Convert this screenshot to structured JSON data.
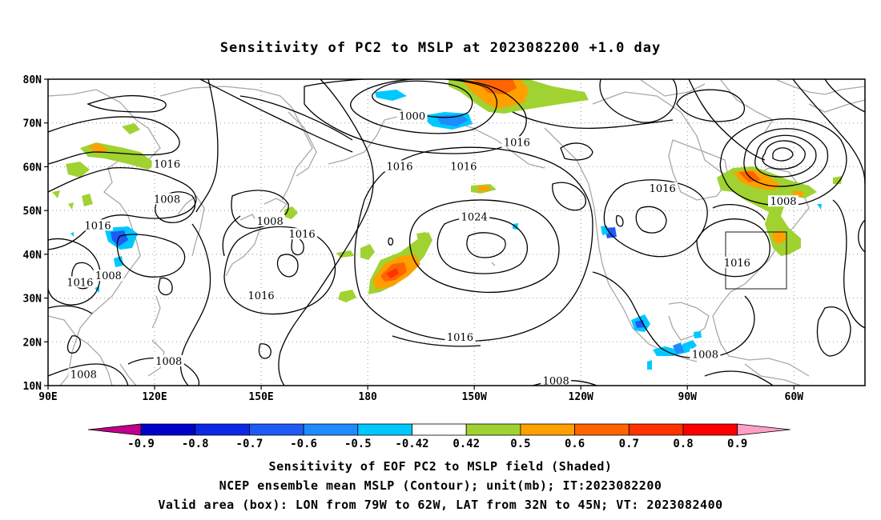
{
  "title": "Sensitivity of PC2 to MSLP at 2023082200 +1.0 day",
  "map": {
    "lat_labels": [
      "80N",
      "70N",
      "60N",
      "50N",
      "40N",
      "30N",
      "20N",
      "10N"
    ],
    "lon_labels": [
      "90E",
      "120E",
      "150E",
      "180",
      "150W",
      "120W",
      "90W",
      "60W"
    ],
    "contour_labels": [
      {
        "text": "1000",
        "lon": -167.5,
        "lat": 71.5
      },
      {
        "text": "1016",
        "lon": -138,
        "lat": 65.5
      },
      {
        "text": "1016",
        "lon": -171,
        "lat": 60
      },
      {
        "text": "1016",
        "lon": -153,
        "lat": 60
      },
      {
        "text": "1016",
        "lon": 123.5,
        "lat": 60.5
      },
      {
        "text": "1008",
        "lon": 123.5,
        "lat": 52.5
      },
      {
        "text": "1008",
        "lon": 152.5,
        "lat": 47.5
      },
      {
        "text": "1016",
        "lon": 161.5,
        "lat": 44.5
      },
      {
        "text": "1016",
        "lon": 104,
        "lat": 46.5
      },
      {
        "text": "1016",
        "lon": 99,
        "lat": 33.5
      },
      {
        "text": "1008",
        "lon": 107,
        "lat": 35
      },
      {
        "text": "1016",
        "lon": 150,
        "lat": 30.5
      },
      {
        "text": "1024",
        "lon": -150,
        "lat": 48.5
      },
      {
        "text": "1016",
        "lon": -154,
        "lat": 21
      },
      {
        "text": "1016",
        "lon": -97,
        "lat": 55
      },
      {
        "text": "1008",
        "lon": -63,
        "lat": 52
      },
      {
        "text": "1016",
        "lon": -76,
        "lat": 38
      },
      {
        "text": "1008",
        "lon": -85,
        "lat": 17
      },
      {
        "text": "1008",
        "lon": 100,
        "lat": 12.5
      },
      {
        "text": "1008",
        "lon": 124,
        "lat": 15.5
      },
      {
        "text": "1008",
        "lon": -127,
        "lat": 11
      }
    ]
  },
  "colorbar": {
    "labels": [
      "-0.9",
      "-0.8",
      "-0.7",
      "-0.6",
      "-0.5",
      "-0.42",
      "0.42",
      "0.5",
      "0.6",
      "0.7",
      "0.8",
      "0.9"
    ],
    "colors": [
      "#c0008c",
      "#0000c8",
      "#0a28e6",
      "#1e5af5",
      "#1e8cff",
      "#00c8ff",
      "#ffffff",
      "#a0d232",
      "#ffa000",
      "#ff6400",
      "#ff3200",
      "#ff0000",
      "#ffa0c8"
    ]
  },
  "captions": {
    "line1": "Sensitivity of EOF PC2 to MSLP field (Shaded)",
    "line2": "NCEP ensemble mean MSLP (Contour); unit(mb); IT:2023082200",
    "line3": "Valid area (box): LON from 79W to 62W, LAT from 32N to 45N; VT: 2023082400"
  }
}
